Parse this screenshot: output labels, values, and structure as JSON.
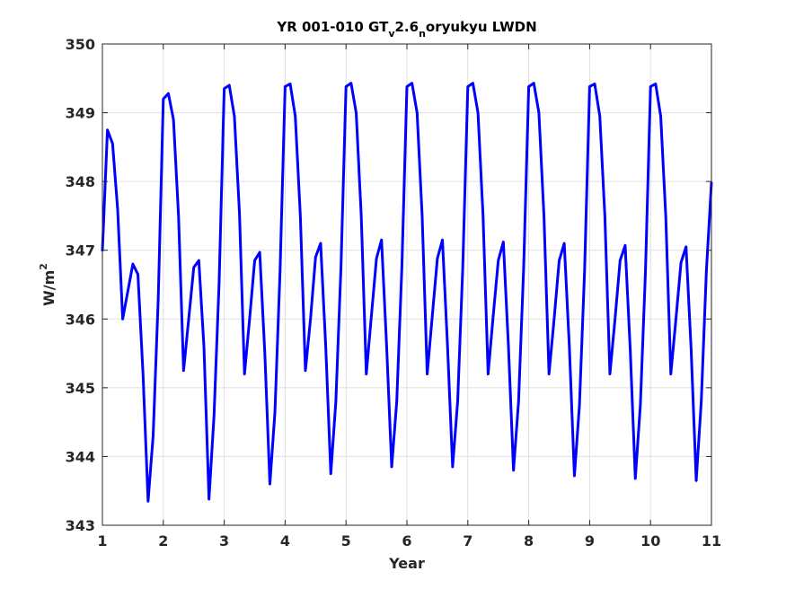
{
  "chart_data": {
    "type": "line",
    "title": {
      "prefix": "YR 001-010 GT",
      "sub1": "v",
      "mid": "2.6",
      "sub2": "n",
      "suffix": "oryukyu LWDN"
    },
    "xlabel": "Year",
    "ylabel": {
      "base": "W/m",
      "sup": "2"
    },
    "xlim": [
      1,
      11
    ],
    "ylim": [
      343,
      350
    ],
    "xticks": [
      1,
      2,
      3,
      4,
      5,
      6,
      7,
      8,
      9,
      10,
      11
    ],
    "yticks": [
      343,
      344,
      345,
      346,
      347,
      348,
      349,
      350
    ],
    "grid": true,
    "line_color": "#0000ff",
    "series": [
      {
        "x": [
          1.0,
          1.083,
          1.167,
          1.25,
          1.333,
          1.417,
          1.5,
          1.583,
          1.667,
          1.75,
          1.833,
          1.917,
          2.0,
          2.083,
          2.167,
          2.25,
          2.333,
          2.417,
          2.5,
          2.583,
          2.667,
          2.75,
          2.833,
          2.917,
          3.0,
          3.083,
          3.167,
          3.25,
          3.333,
          3.417,
          3.5,
          3.583,
          3.667,
          3.75,
          3.833,
          3.917,
          4.0,
          4.083,
          4.167,
          4.25,
          4.333,
          4.417,
          4.5,
          4.583,
          4.667,
          4.75,
          4.833,
          4.917,
          5.0,
          5.083,
          5.167,
          5.25,
          5.333,
          5.417,
          5.5,
          5.583,
          5.667,
          5.75,
          5.833,
          5.917,
          6.0,
          6.083,
          6.167,
          6.25,
          6.333,
          6.417,
          6.5,
          6.583,
          6.667,
          6.75,
          6.833,
          6.917,
          7.0,
          7.083,
          7.167,
          7.25,
          7.333,
          7.417,
          7.5,
          7.583,
          7.667,
          7.75,
          7.833,
          7.917,
          8.0,
          8.083,
          8.167,
          8.25,
          8.333,
          8.417,
          8.5,
          8.583,
          8.667,
          8.75,
          8.833,
          8.917,
          9.0,
          9.083,
          9.167,
          9.25,
          9.333,
          9.417,
          9.5,
          9.583,
          9.667,
          9.75,
          9.833,
          9.917,
          10.0,
          10.083,
          10.167,
          10.25,
          10.333,
          10.417,
          10.5,
          10.583,
          10.667,
          10.75,
          10.833,
          10.917,
          11.0
        ],
        "values": [
          347.0,
          348.75,
          348.55,
          347.6,
          346.0,
          346.4,
          346.8,
          346.65,
          345.2,
          343.35,
          344.3,
          346.3,
          349.2,
          349.28,
          348.9,
          347.5,
          345.25,
          346.0,
          346.75,
          346.85,
          345.6,
          343.38,
          344.6,
          346.55,
          349.35,
          349.4,
          348.95,
          347.55,
          345.2,
          346.0,
          346.85,
          346.97,
          345.5,
          343.6,
          344.65,
          346.7,
          349.38,
          349.42,
          348.95,
          347.5,
          345.25,
          346.0,
          346.9,
          347.1,
          345.6,
          343.75,
          344.8,
          346.75,
          349.38,
          349.43,
          349.0,
          347.5,
          345.2,
          346.05,
          346.88,
          347.15,
          345.6,
          343.85,
          344.8,
          346.75,
          349.38,
          349.43,
          349.0,
          347.5,
          345.2,
          346.05,
          346.88,
          347.15,
          345.6,
          343.85,
          344.8,
          346.75,
          349.38,
          349.43,
          349.0,
          347.5,
          345.2,
          346.05,
          346.85,
          347.12,
          345.6,
          343.8,
          344.8,
          346.75,
          349.38,
          349.43,
          349.0,
          347.5,
          345.2,
          346.0,
          346.85,
          347.1,
          345.6,
          343.72,
          344.75,
          346.7,
          349.38,
          349.42,
          348.95,
          347.5,
          345.2,
          346.0,
          346.85,
          347.07,
          345.55,
          343.68,
          344.75,
          346.7,
          349.38,
          349.42,
          348.95,
          347.5,
          345.2,
          346.0,
          346.82,
          347.05,
          345.55,
          343.65,
          344.8,
          346.7,
          347.98
        ]
      }
    ]
  }
}
